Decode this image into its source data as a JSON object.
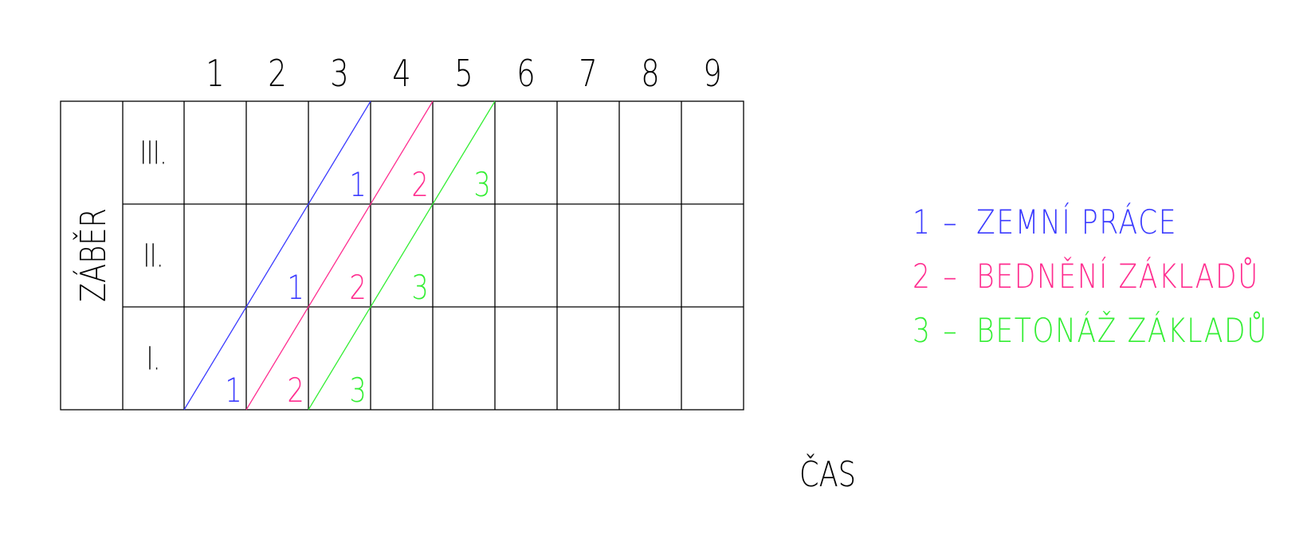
{
  "axis": {
    "y_label": "ZÁBĚR",
    "x_label": "ČAS"
  },
  "columns": [
    "1",
    "2",
    "3",
    "4",
    "5",
    "6",
    "7",
    "8",
    "9"
  ],
  "rows": [
    "III.",
    "II.",
    "I."
  ],
  "activities": [
    {
      "id": "1",
      "name": "ZEMNÍ PRÁCE",
      "color": "#3b3bff",
      "start_time": [
        1,
        2,
        3
      ]
    },
    {
      "id": "2",
      "name": "BEDNĚNÍ ZÁKLADŮ",
      "color": "#ff2d8f",
      "start_time": [
        2,
        3,
        4
      ]
    },
    {
      "id": "3",
      "name": "BETONÁŽ ZÁKLADŮ",
      "color": "#33ee33",
      "start_time": [
        3,
        4,
        5
      ]
    }
  ],
  "legend": {
    "dash": "–",
    "items": [
      {
        "num": "1",
        "text": "ZEMNÍ PRÁCE"
      },
      {
        "num": "2",
        "text": "BEDNĚNÍ ZÁKLADŮ"
      },
      {
        "num": "3",
        "text": "BETONÁŽ ZÁKLADŮ"
      }
    ]
  }
}
